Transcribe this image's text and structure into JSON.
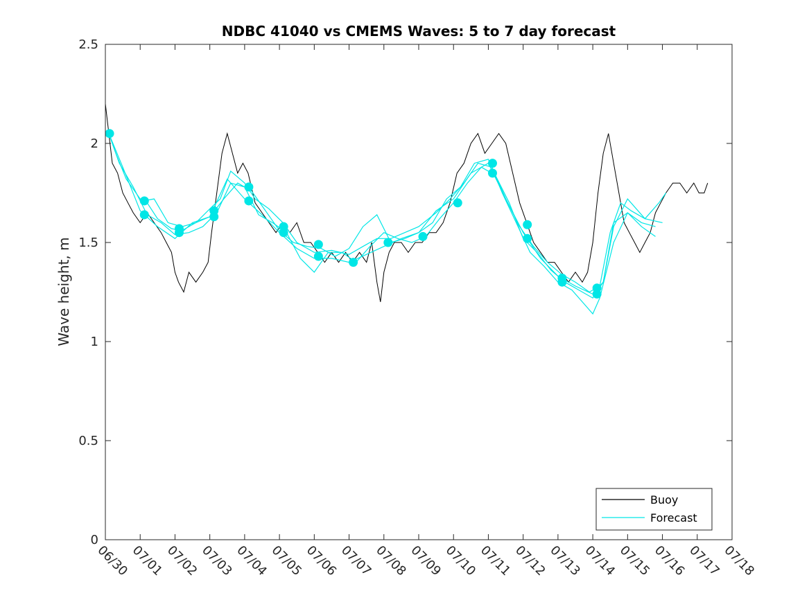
{
  "chart_data": {
    "type": "line",
    "title": "NDBC 41040 vs CMEMS Waves: 5 to 7 day forecast",
    "xlabel": "",
    "ylabel": "Wave height, m",
    "x_unit": "days from 06/30 00:00",
    "xlim": [
      0,
      18
    ],
    "ylim": [
      0,
      2.5
    ],
    "x_tick_labels": [
      "06/30",
      "07/01",
      "07/02",
      "07/03",
      "07/04",
      "07/05",
      "07/06",
      "07/07",
      "07/08",
      "07/09",
      "07/10",
      "07/11",
      "07/12",
      "07/13",
      "07/14",
      "07/15",
      "07/16",
      "07/17",
      "07/18"
    ],
    "y_ticks": [
      0,
      0.5,
      1,
      1.5,
      2,
      2.5
    ],
    "y_tick_labels": [
      "0",
      "0.5",
      "1",
      "1.5",
      "2",
      "2.5"
    ],
    "legend": {
      "position": "bottom-right",
      "entries": [
        "Buoy",
        "Forecast"
      ]
    },
    "colors": {
      "buoy": "#000000",
      "forecast": "#00e6e6",
      "axis": "#262626"
    },
    "buoy_series": {
      "name": "Buoy",
      "x": [
        0.0,
        0.1,
        0.2,
        0.35,
        0.5,
        0.65,
        0.8,
        1.0,
        1.2,
        1.4,
        1.6,
        1.75,
        1.9,
        2.0,
        2.1,
        2.25,
        2.4,
        2.6,
        2.8,
        2.95,
        3.05,
        3.2,
        3.35,
        3.5,
        3.65,
        3.8,
        3.95,
        4.1,
        4.3,
        4.5,
        4.7,
        4.9,
        5.1,
        5.3,
        5.5,
        5.7,
        5.9,
        6.1,
        6.3,
        6.5,
        6.7,
        6.9,
        7.1,
        7.3,
        7.5,
        7.65,
        7.8,
        7.9,
        8.0,
        8.15,
        8.3,
        8.5,
        8.7,
        8.9,
        9.1,
        9.3,
        9.5,
        9.7,
        9.9,
        10.1,
        10.3,
        10.5,
        10.7,
        10.9,
        11.1,
        11.3,
        11.5,
        11.7,
        11.9,
        12.1,
        12.3,
        12.5,
        12.7,
        12.9,
        13.1,
        13.3,
        13.5,
        13.7,
        13.85,
        14.0,
        14.15,
        14.3,
        14.45,
        14.6,
        14.75,
        14.9,
        15.05,
        15.2,
        15.35,
        15.5,
        15.65,
        15.8,
        15.95,
        16.1,
        16.3,
        16.5,
        16.7,
        16.9,
        17.05,
        17.2,
        17.3
      ],
      "y": [
        2.2,
        2.05,
        1.9,
        1.85,
        1.75,
        1.7,
        1.65,
        1.6,
        1.65,
        1.6,
        1.55,
        1.5,
        1.45,
        1.35,
        1.3,
        1.25,
        1.35,
        1.3,
        1.35,
        1.4,
        1.55,
        1.75,
        1.95,
        2.05,
        1.95,
        1.85,
        1.9,
        1.85,
        1.7,
        1.65,
        1.6,
        1.55,
        1.6,
        1.55,
        1.6,
        1.5,
        1.5,
        1.45,
        1.4,
        1.45,
        1.4,
        1.45,
        1.4,
        1.45,
        1.4,
        1.5,
        1.3,
        1.2,
        1.35,
        1.45,
        1.5,
        1.5,
        1.45,
        1.5,
        1.5,
        1.55,
        1.55,
        1.6,
        1.7,
        1.85,
        1.9,
        2.0,
        2.05,
        1.95,
        2.0,
        2.05,
        2.0,
        1.85,
        1.7,
        1.6,
        1.5,
        1.45,
        1.4,
        1.4,
        1.35,
        1.3,
        1.35,
        1.3,
        1.35,
        1.5,
        1.75,
        1.95,
        2.05,
        1.9,
        1.75,
        1.6,
        1.55,
        1.5,
        1.45,
        1.5,
        1.55,
        1.65,
        1.7,
        1.75,
        1.8,
        1.8,
        1.75,
        1.8,
        1.75,
        1.75,
        1.8
      ]
    },
    "forecast_series": [
      {
        "x": [
          0.1,
          0.3,
          0.6,
          1.0,
          1.2,
          1.5,
          1.9,
          2.2,
          2.6,
          3.0,
          3.3,
          3.6,
          4.0,
          4.3,
          4.7,
          5.1,
          5.5,
          6.0,
          6.5,
          7.0,
          7.4,
          7.8,
          8.2,
          8.6,
          9.0,
          9.5,
          9.9,
          10.3,
          10.7,
          11.1,
          11.5,
          11.9,
          12.3,
          12.7,
          13.1,
          13.5,
          13.9,
          14.2,
          14.5,
          14.8,
          15.1,
          15.5,
          15.9,
          16.1
        ],
        "y": [
          2.05,
          1.95,
          1.82,
          1.72,
          1.7,
          1.62,
          1.57,
          1.56,
          1.6,
          1.67,
          1.72,
          1.86,
          1.8,
          1.72,
          1.67,
          1.6,
          1.5,
          1.45,
          1.46,
          1.44,
          1.48,
          1.52,
          1.52,
          1.55,
          1.58,
          1.65,
          1.72,
          1.8,
          1.9,
          1.88,
          1.72,
          1.58,
          1.48,
          1.4,
          1.34,
          1.3,
          1.25,
          1.28,
          1.55,
          1.7,
          1.66,
          1.62,
          1.7,
          1.75
        ]
      },
      {
        "x": [
          0.1,
          0.4,
          0.8,
          1.2,
          1.6,
          2.0,
          2.4,
          2.8,
          3.2,
          3.6,
          4.0,
          4.4,
          4.8,
          5.2,
          5.6,
          6.0,
          6.4,
          6.8,
          7.2,
          7.6,
          8.0,
          8.4,
          8.8,
          9.2,
          9.6,
          10.0,
          10.4,
          10.8,
          11.2,
          11.6,
          12.0,
          12.4,
          12.8,
          13.2,
          13.6,
          14.0,
          14.3,
          14.6,
          15.0,
          15.4,
          15.8
        ],
        "y": [
          2.05,
          1.9,
          1.78,
          1.64,
          1.6,
          1.54,
          1.55,
          1.58,
          1.65,
          1.8,
          1.78,
          1.64,
          1.6,
          1.55,
          1.42,
          1.35,
          1.45,
          1.45,
          1.4,
          1.48,
          1.55,
          1.52,
          1.5,
          1.53,
          1.62,
          1.7,
          1.8,
          1.88,
          1.84,
          1.7,
          1.52,
          1.45,
          1.36,
          1.3,
          1.26,
          1.22,
          1.3,
          1.6,
          1.65,
          1.6,
          1.58
        ]
      },
      {
        "x": [
          1.1,
          1.4,
          1.8,
          2.2,
          2.6,
          3.0,
          3.4,
          3.8,
          4.2,
          4.6,
          5.0,
          5.4,
          5.8,
          6.2,
          6.6,
          7.0,
          7.4,
          7.8,
          8.2,
          8.6,
          9.0,
          9.4,
          9.8,
          10.2,
          10.6,
          11.0,
          11.4,
          11.8,
          12.2,
          12.6,
          13.0,
          13.4,
          13.8,
          14.0,
          14.2,
          14.6,
          15.0,
          15.4,
          15.8
        ],
        "y": [
          1.71,
          1.72,
          1.6,
          1.58,
          1.6,
          1.63,
          1.72,
          1.8,
          1.76,
          1.66,
          1.56,
          1.5,
          1.48,
          1.47,
          1.43,
          1.47,
          1.58,
          1.64,
          1.5,
          1.52,
          1.55,
          1.6,
          1.72,
          1.78,
          1.9,
          1.92,
          1.75,
          1.6,
          1.45,
          1.38,
          1.3,
          1.26,
          1.18,
          1.14,
          1.22,
          1.5,
          1.65,
          1.58,
          1.53
        ]
      },
      {
        "x": [
          0.1,
          0.5,
          1.0,
          1.5,
          2.0,
          2.5,
          3.0,
          3.5,
          4.0,
          4.5,
          5.0,
          5.5,
          6.0,
          6.5,
          7.0,
          7.5,
          8.0,
          8.5,
          9.0,
          9.5,
          10.0,
          10.5,
          11.0,
          11.5,
          12.0,
          12.5,
          13.0,
          13.5,
          14.0,
          14.3,
          14.6,
          15.0,
          15.5,
          16.0
        ],
        "y": [
          2.05,
          1.88,
          1.66,
          1.58,
          1.52,
          1.6,
          1.63,
          1.82,
          1.72,
          1.64,
          1.55,
          1.47,
          1.42,
          1.42,
          1.4,
          1.44,
          1.48,
          1.52,
          1.55,
          1.66,
          1.72,
          1.85,
          1.9,
          1.72,
          1.55,
          1.42,
          1.33,
          1.28,
          1.24,
          1.3,
          1.58,
          1.72,
          1.62,
          1.6
        ]
      }
    ],
    "forecast_markers": {
      "x": [
        0.12,
        1.12,
        1.12,
        2.12,
        2.12,
        3.12,
        3.12,
        4.12,
        4.12,
        5.12,
        5.12,
        6.12,
        6.12,
        7.12,
        8.12,
        9.12,
        10.12,
        11.12,
        11.12,
        12.12,
        12.12,
        13.12,
        13.12,
        14.12,
        14.12
      ],
      "y": [
        2.05,
        1.71,
        1.64,
        1.57,
        1.55,
        1.66,
        1.63,
        1.78,
        1.71,
        1.58,
        1.55,
        1.49,
        1.43,
        1.4,
        1.5,
        1.53,
        1.7,
        1.9,
        1.85,
        1.59,
        1.52,
        1.32,
        1.3,
        1.27,
        1.24
      ]
    }
  }
}
